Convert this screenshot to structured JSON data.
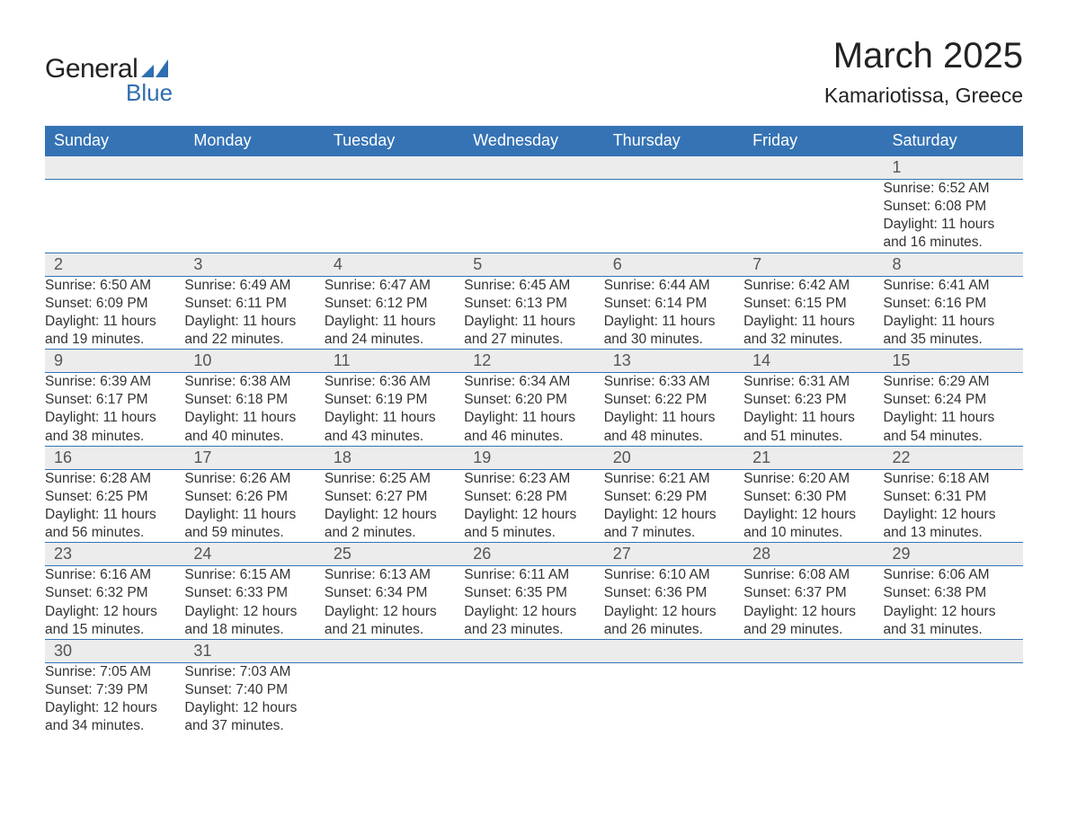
{
  "brand": {
    "word1": "General",
    "word2": "Blue",
    "accent_color": "#2f6eb0"
  },
  "title": "March 2025",
  "location": "Kamariotissa, Greece",
  "colors": {
    "header_bg": "#3573b4",
    "header_text": "#ffffff",
    "daynum_bg": "#ececec",
    "row_divider": "#3573b4",
    "text": "#333333",
    "page_bg": "#ffffff"
  },
  "font": {
    "family": "Arial, Helvetica, sans-serif",
    "title_size_pt": 30,
    "location_size_pt": 17,
    "header_size_pt": 14,
    "body_size_pt": 12
  },
  "weekdays": [
    "Sunday",
    "Monday",
    "Tuesday",
    "Wednesday",
    "Thursday",
    "Friday",
    "Saturday"
  ],
  "weeks": [
    [
      null,
      null,
      null,
      null,
      null,
      null,
      {
        "d": "1",
        "sr": "Sunrise: 6:52 AM",
        "ss": "Sunset: 6:08 PM",
        "dl1": "Daylight: 11 hours",
        "dl2": "and 16 minutes."
      }
    ],
    [
      {
        "d": "2",
        "sr": "Sunrise: 6:50 AM",
        "ss": "Sunset: 6:09 PM",
        "dl1": "Daylight: 11 hours",
        "dl2": "and 19 minutes."
      },
      {
        "d": "3",
        "sr": "Sunrise: 6:49 AM",
        "ss": "Sunset: 6:11 PM",
        "dl1": "Daylight: 11 hours",
        "dl2": "and 22 minutes."
      },
      {
        "d": "4",
        "sr": "Sunrise: 6:47 AM",
        "ss": "Sunset: 6:12 PM",
        "dl1": "Daylight: 11 hours",
        "dl2": "and 24 minutes."
      },
      {
        "d": "5",
        "sr": "Sunrise: 6:45 AM",
        "ss": "Sunset: 6:13 PM",
        "dl1": "Daylight: 11 hours",
        "dl2": "and 27 minutes."
      },
      {
        "d": "6",
        "sr": "Sunrise: 6:44 AM",
        "ss": "Sunset: 6:14 PM",
        "dl1": "Daylight: 11 hours",
        "dl2": "and 30 minutes."
      },
      {
        "d": "7",
        "sr": "Sunrise: 6:42 AM",
        "ss": "Sunset: 6:15 PM",
        "dl1": "Daylight: 11 hours",
        "dl2": "and 32 minutes."
      },
      {
        "d": "8",
        "sr": "Sunrise: 6:41 AM",
        "ss": "Sunset: 6:16 PM",
        "dl1": "Daylight: 11 hours",
        "dl2": "and 35 minutes."
      }
    ],
    [
      {
        "d": "9",
        "sr": "Sunrise: 6:39 AM",
        "ss": "Sunset: 6:17 PM",
        "dl1": "Daylight: 11 hours",
        "dl2": "and 38 minutes."
      },
      {
        "d": "10",
        "sr": "Sunrise: 6:38 AM",
        "ss": "Sunset: 6:18 PM",
        "dl1": "Daylight: 11 hours",
        "dl2": "and 40 minutes."
      },
      {
        "d": "11",
        "sr": "Sunrise: 6:36 AM",
        "ss": "Sunset: 6:19 PM",
        "dl1": "Daylight: 11 hours",
        "dl2": "and 43 minutes."
      },
      {
        "d": "12",
        "sr": "Sunrise: 6:34 AM",
        "ss": "Sunset: 6:20 PM",
        "dl1": "Daylight: 11 hours",
        "dl2": "and 46 minutes."
      },
      {
        "d": "13",
        "sr": "Sunrise: 6:33 AM",
        "ss": "Sunset: 6:22 PM",
        "dl1": "Daylight: 11 hours",
        "dl2": "and 48 minutes."
      },
      {
        "d": "14",
        "sr": "Sunrise: 6:31 AM",
        "ss": "Sunset: 6:23 PM",
        "dl1": "Daylight: 11 hours",
        "dl2": "and 51 minutes."
      },
      {
        "d": "15",
        "sr": "Sunrise: 6:29 AM",
        "ss": "Sunset: 6:24 PM",
        "dl1": "Daylight: 11 hours",
        "dl2": "and 54 minutes."
      }
    ],
    [
      {
        "d": "16",
        "sr": "Sunrise: 6:28 AM",
        "ss": "Sunset: 6:25 PM",
        "dl1": "Daylight: 11 hours",
        "dl2": "and 56 minutes."
      },
      {
        "d": "17",
        "sr": "Sunrise: 6:26 AM",
        "ss": "Sunset: 6:26 PM",
        "dl1": "Daylight: 11 hours",
        "dl2": "and 59 minutes."
      },
      {
        "d": "18",
        "sr": "Sunrise: 6:25 AM",
        "ss": "Sunset: 6:27 PM",
        "dl1": "Daylight: 12 hours",
        "dl2": "and 2 minutes."
      },
      {
        "d": "19",
        "sr": "Sunrise: 6:23 AM",
        "ss": "Sunset: 6:28 PM",
        "dl1": "Daylight: 12 hours",
        "dl2": "and 5 minutes."
      },
      {
        "d": "20",
        "sr": "Sunrise: 6:21 AM",
        "ss": "Sunset: 6:29 PM",
        "dl1": "Daylight: 12 hours",
        "dl2": "and 7 minutes."
      },
      {
        "d": "21",
        "sr": "Sunrise: 6:20 AM",
        "ss": "Sunset: 6:30 PM",
        "dl1": "Daylight: 12 hours",
        "dl2": "and 10 minutes."
      },
      {
        "d": "22",
        "sr": "Sunrise: 6:18 AM",
        "ss": "Sunset: 6:31 PM",
        "dl1": "Daylight: 12 hours",
        "dl2": "and 13 minutes."
      }
    ],
    [
      {
        "d": "23",
        "sr": "Sunrise: 6:16 AM",
        "ss": "Sunset: 6:32 PM",
        "dl1": "Daylight: 12 hours",
        "dl2": "and 15 minutes."
      },
      {
        "d": "24",
        "sr": "Sunrise: 6:15 AM",
        "ss": "Sunset: 6:33 PM",
        "dl1": "Daylight: 12 hours",
        "dl2": "and 18 minutes."
      },
      {
        "d": "25",
        "sr": "Sunrise: 6:13 AM",
        "ss": "Sunset: 6:34 PM",
        "dl1": "Daylight: 12 hours",
        "dl2": "and 21 minutes."
      },
      {
        "d": "26",
        "sr": "Sunrise: 6:11 AM",
        "ss": "Sunset: 6:35 PM",
        "dl1": "Daylight: 12 hours",
        "dl2": "and 23 minutes."
      },
      {
        "d": "27",
        "sr": "Sunrise: 6:10 AM",
        "ss": "Sunset: 6:36 PM",
        "dl1": "Daylight: 12 hours",
        "dl2": "and 26 minutes."
      },
      {
        "d": "28",
        "sr": "Sunrise: 6:08 AM",
        "ss": "Sunset: 6:37 PM",
        "dl1": "Daylight: 12 hours",
        "dl2": "and 29 minutes."
      },
      {
        "d": "29",
        "sr": "Sunrise: 6:06 AM",
        "ss": "Sunset: 6:38 PM",
        "dl1": "Daylight: 12 hours",
        "dl2": "and 31 minutes."
      }
    ],
    [
      {
        "d": "30",
        "sr": "Sunrise: 7:05 AM",
        "ss": "Sunset: 7:39 PM",
        "dl1": "Daylight: 12 hours",
        "dl2": "and 34 minutes."
      },
      {
        "d": "31",
        "sr": "Sunrise: 7:03 AM",
        "ss": "Sunset: 7:40 PM",
        "dl1": "Daylight: 12 hours",
        "dl2": "and 37 minutes."
      },
      null,
      null,
      null,
      null,
      null
    ]
  ]
}
